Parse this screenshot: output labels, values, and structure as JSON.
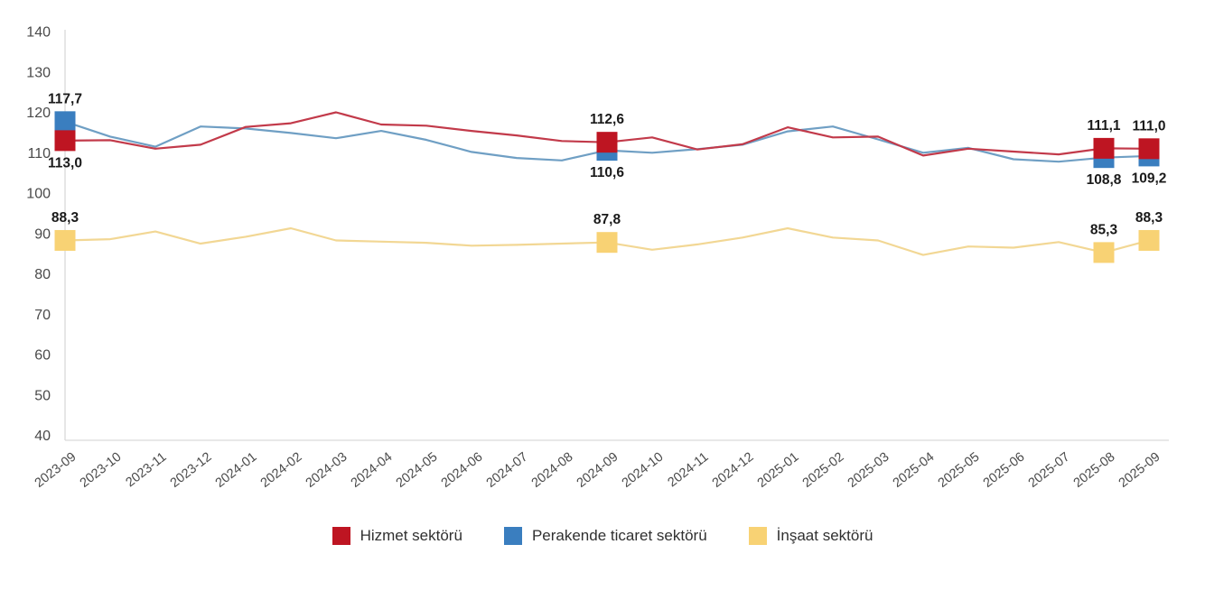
{
  "chart_data": {
    "type": "line",
    "title": "",
    "xlabel": "",
    "ylabel": "",
    "ylim": [
      40,
      140
    ],
    "yticks": [
      140,
      130,
      120,
      110,
      100,
      90,
      80,
      70,
      60,
      50,
      40
    ],
    "grid": false,
    "legend_position": "bottom",
    "x": [
      "2023-09",
      "2023-10",
      "2023-11",
      "2023-12",
      "2024-01",
      "2024-02",
      "2024-03",
      "2024-04",
      "2024-05",
      "2024-06",
      "2024-07",
      "2024-08",
      "2024-09",
      "2024-10",
      "2024-11",
      "2024-12",
      "2025-01",
      "2025-02",
      "2025-03",
      "2025-04",
      "2025-05",
      "2025-06",
      "2025-07",
      "2025-08",
      "2025-09"
    ],
    "series": [
      {
        "name": "Hizmet sektörü",
        "color": "#be1522",
        "line_color": "#c23a4a",
        "values": [
          113.0,
          113.1,
          111.0,
          112.0,
          116.4,
          117.3,
          120.0,
          117.0,
          116.7,
          115.4,
          114.3,
          112.9,
          112.6,
          113.8,
          110.8,
          112.1,
          116.3,
          113.8,
          114.0,
          109.3,
          111.0,
          110.3,
          109.6,
          111.1,
          111.0
        ],
        "labeled_points": [
          {
            "i": 0,
            "label": "113,0",
            "pos": "below"
          },
          {
            "i": 12,
            "label": "112,6",
            "pos": "above"
          },
          {
            "i": 23,
            "label": "111,1",
            "pos": "above"
          },
          {
            "i": 24,
            "label": "111,0",
            "pos": "above"
          }
        ]
      },
      {
        "name": "Perakende ticaret sektörü",
        "color": "#3a7ebf",
        "line_color": "#6f9fc4",
        "values": [
          117.7,
          114.0,
          111.5,
          116.5,
          116.0,
          114.9,
          113.6,
          115.4,
          113.2,
          110.2,
          108.7,
          108.1,
          110.6,
          110.0,
          110.9,
          112.0,
          115.3,
          116.5,
          113.3,
          110.0,
          111.2,
          108.4,
          107.8,
          108.8,
          109.2
        ],
        "labeled_points": [
          {
            "i": 0,
            "label": "117,7",
            "pos": "above"
          },
          {
            "i": 12,
            "label": "110,6",
            "pos": "below"
          },
          {
            "i": 23,
            "label": "108,8",
            "pos": "below"
          },
          {
            "i": 24,
            "label": "109,2",
            "pos": "below"
          }
        ]
      },
      {
        "name": "İnşaat sektörü",
        "color": "#f8d274",
        "line_color": "#f2d794",
        "values": [
          88.3,
          88.6,
          90.5,
          87.5,
          89.2,
          91.3,
          88.3,
          88.0,
          87.7,
          87.0,
          87.2,
          87.5,
          87.8,
          86.0,
          87.3,
          89.0,
          91.3,
          89.0,
          88.3,
          84.7,
          86.8,
          86.5,
          87.9,
          85.3,
          88.3
        ],
        "labeled_points": [
          {
            "i": 0,
            "label": "88,3",
            "pos": "above"
          },
          {
            "i": 12,
            "label": "87,8",
            "pos": "above"
          },
          {
            "i": 23,
            "label": "85,3",
            "pos": "above"
          },
          {
            "i": 24,
            "label": "88,3",
            "pos": "above"
          }
        ]
      }
    ],
    "axis_color": "#d9d9d9",
    "tick_label_color": "#4a4a4a",
    "data_label_color": "#1a1a1a"
  }
}
